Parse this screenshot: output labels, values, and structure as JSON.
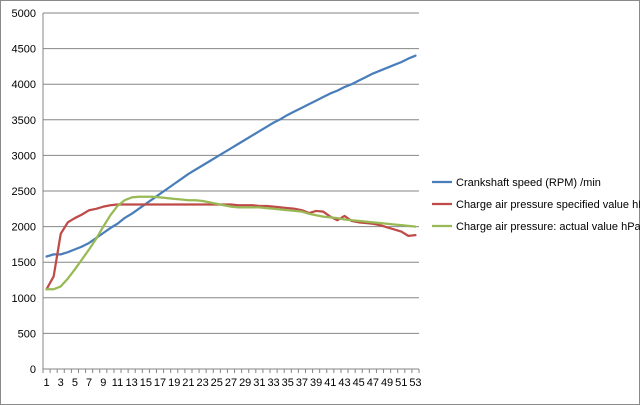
{
  "chart_data": {
    "type": "line",
    "title": "",
    "xlabel": "",
    "ylabel": "",
    "ylim": [
      0,
      5000
    ],
    "y_ticks": [
      0,
      500,
      1000,
      1500,
      2000,
      2500,
      3000,
      3500,
      4000,
      4500,
      5000
    ],
    "x_tick_labels": [
      "1",
      "3",
      "5",
      "7",
      "9",
      "11",
      "13",
      "15",
      "17",
      "19",
      "21",
      "23",
      "25",
      "27",
      "29",
      "31",
      "33",
      "35",
      "37",
      "39",
      "41",
      "43",
      "45",
      "47",
      "49",
      "51",
      "53"
    ],
    "grid": "horizontal",
    "legend_position": "right",
    "x": [
      1,
      2,
      3,
      4,
      5,
      6,
      7,
      8,
      9,
      10,
      11,
      12,
      13,
      14,
      15,
      16,
      17,
      18,
      19,
      20,
      21,
      22,
      23,
      24,
      25,
      26,
      27,
      28,
      29,
      30,
      31,
      32,
      33,
      34,
      35,
      36,
      37,
      38,
      39,
      40,
      41,
      42,
      43,
      44,
      45,
      46,
      47,
      48,
      49,
      50,
      51,
      52,
      53
    ],
    "series": [
      {
        "name": "Crankshaft speed (RPM)  /min",
        "color": "#4a7ebb",
        "values": [
          1580,
          1610,
          1610,
          1640,
          1680,
          1720,
          1770,
          1840,
          1910,
          1980,
          2040,
          2120,
          2180,
          2250,
          2320,
          2390,
          2460,
          2530,
          2600,
          2670,
          2740,
          2800,
          2860,
          2920,
          2980,
          3040,
          3100,
          3160,
          3220,
          3280,
          3340,
          3400,
          3460,
          3510,
          3570,
          3620,
          3670,
          3720,
          3770,
          3820,
          3870,
          3910,
          3960,
          4000,
          4050,
          4100,
          4150,
          4190,
          4230,
          4270,
          4310,
          4360,
          4400
        ]
      },
      {
        "name": "Charge air pressure specified value  hPa",
        "color": "#be4b48",
        "values": [
          1120,
          1300,
          1900,
          2060,
          2120,
          2170,
          2230,
          2250,
          2280,
          2300,
          2310,
          2310,
          2310,
          2310,
          2310,
          2310,
          2310,
          2310,
          2310,
          2310,
          2310,
          2310,
          2310,
          2310,
          2310,
          2310,
          2310,
          2300,
          2300,
          2300,
          2290,
          2290,
          2280,
          2270,
          2260,
          2250,
          2230,
          2190,
          2220,
          2210,
          2140,
          2090,
          2150,
          2080,
          2060,
          2050,
          2040,
          2020,
          1990,
          1960,
          1930,
          1870,
          1880
        ]
      },
      {
        "name": "Charge air pressure: actual value  hPa",
        "color": "#98b954",
        "values": [
          1120,
          1120,
          1160,
          1270,
          1400,
          1540,
          1680,
          1830,
          2000,
          2160,
          2290,
          2370,
          2410,
          2420,
          2420,
          2420,
          2410,
          2400,
          2390,
          2380,
          2370,
          2370,
          2360,
          2340,
          2320,
          2300,
          2280,
          2270,
          2270,
          2270,
          2270,
          2260,
          2250,
          2240,
          2230,
          2220,
          2210,
          2180,
          2160,
          2140,
          2130,
          2120,
          2100,
          2090,
          2080,
          2070,
          2060,
          2050,
          2040,
          2030,
          2020,
          2010,
          2000
        ]
      }
    ]
  }
}
